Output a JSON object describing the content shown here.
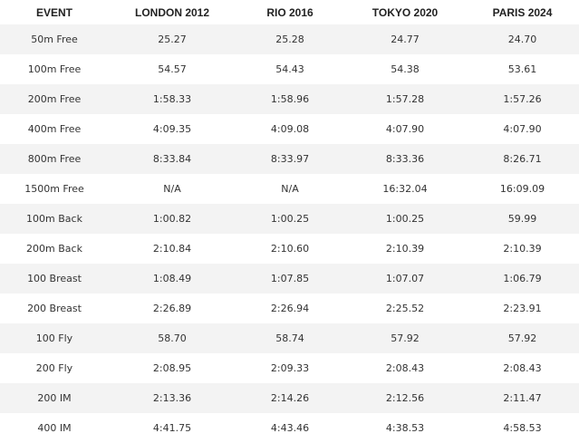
{
  "table": {
    "header": [
      "EVENT",
      "LONDON 2012",
      "RIO 2016",
      "TOKYO 2020",
      "PARIS 2024"
    ],
    "rows": [
      [
        "50m Free",
        "25.27",
        "25.28",
        "24.77",
        "24.70"
      ],
      [
        "100m Free",
        "54.57",
        "54.43",
        "54.38",
        "53.61"
      ],
      [
        "200m Free",
        "1:58.33",
        "1:58.96",
        "1:57.28",
        "1:57.26"
      ],
      [
        "400m Free",
        "4:09.35",
        "4:09.08",
        "4:07.90",
        "4:07.90"
      ],
      [
        "800m Free",
        "8:33.84",
        "8:33.97",
        "8:33.36",
        "8:26.71"
      ],
      [
        "1500m Free",
        "N/A",
        "N/A",
        "16:32.04",
        "16:09.09"
      ],
      [
        "100m Back",
        "1:00.82",
        "1:00.25",
        "1:00.25",
        "59.99"
      ],
      [
        "200m Back",
        "2:10.84",
        "2:10.60",
        "2:10.39",
        "2:10.39"
      ],
      [
        "100 Breast",
        "1:08.49",
        "1:07.85",
        "1:07.07",
        "1:06.79"
      ],
      [
        "200 Breast",
        "2:26.89",
        "2:26.94",
        "2:25.52",
        "2:23.91"
      ],
      [
        "100 Fly",
        "58.70",
        "58.74",
        "57.92",
        "57.92"
      ],
      [
        "200 Fly",
        "2:08.95",
        "2:09.33",
        "2:08.43",
        "2:08.43"
      ],
      [
        "200 IM",
        "2:13.36",
        "2:14.26",
        "2:12.56",
        "2:11.47"
      ],
      [
        "400 IM",
        "4:41.75",
        "4:43.46",
        "4:38.53",
        "4:58.53"
      ]
    ]
  }
}
